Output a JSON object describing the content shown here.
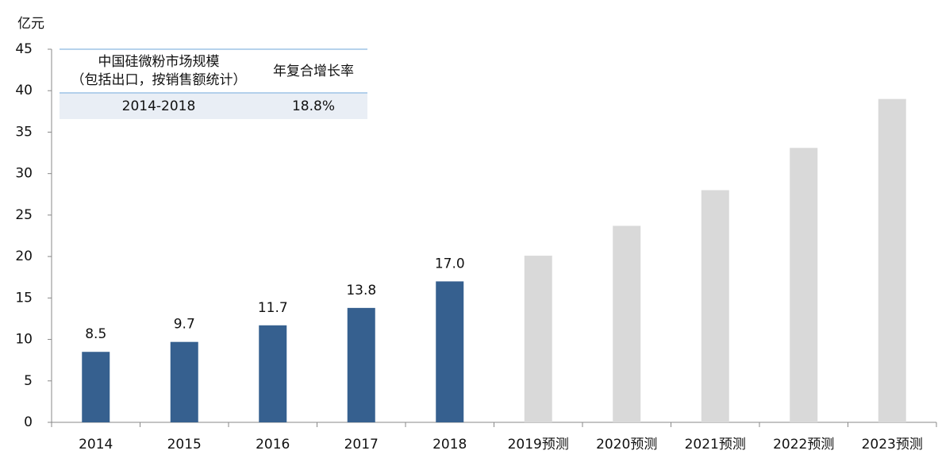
{
  "chart_data": {
    "type": "bar",
    "y_label": "亿元",
    "categories": [
      "2014",
      "2015",
      "2016",
      "2017",
      "2018",
      "2019预测",
      "2020预测",
      "2021预测",
      "2022预测",
      "2023预测"
    ],
    "values": [
      8.5,
      9.7,
      11.7,
      13.8,
      17.0,
      20.1,
      23.7,
      28.0,
      33.1,
      39.0
    ],
    "value_labels": [
      "8.5",
      "9.7",
      "11.7",
      "13.8",
      "17.0",
      null,
      null,
      null,
      null,
      null
    ],
    "colors": [
      "#36608f",
      "#36608f",
      "#36608f",
      "#36608f",
      "#36608f",
      "#d9d9d9",
      "#d9d9d9",
      "#d9d9d9",
      "#d9d9d9",
      "#d9d9d9"
    ],
    "ylim": [
      0,
      45
    ],
    "yticks": [
      0,
      5,
      10,
      15,
      20,
      25,
      30,
      35,
      40,
      45
    ],
    "table": {
      "header": [
        [
          "中国硅微粉市场规模",
          "（包括出口，按销售额统计）"
        ],
        "年复合增长率"
      ],
      "rows": [
        [
          "2014-2018",
          "18.8%"
        ]
      ]
    }
  }
}
